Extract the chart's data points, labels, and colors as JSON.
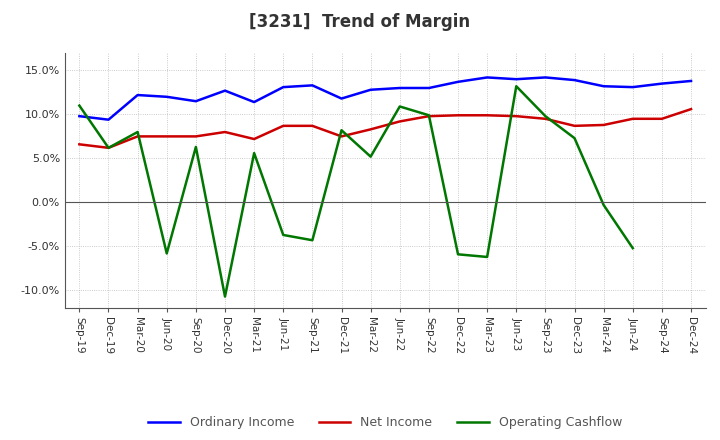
{
  "title": "[3231]  Trend of Margin",
  "x_labels": [
    "Sep-19",
    "Dec-19",
    "Mar-20",
    "Jun-20",
    "Sep-20",
    "Dec-20",
    "Mar-21",
    "Jun-21",
    "Sep-21",
    "Dec-21",
    "Mar-22",
    "Jun-22",
    "Sep-22",
    "Dec-22",
    "Mar-23",
    "Jun-23",
    "Sep-23",
    "Dec-23",
    "Mar-24",
    "Jun-24",
    "Sep-24",
    "Dec-24"
  ],
  "ordinary_income": [
    9.8,
    9.4,
    12.2,
    12.0,
    11.5,
    12.7,
    11.4,
    13.1,
    13.3,
    11.8,
    12.8,
    13.0,
    13.0,
    13.7,
    14.2,
    14.0,
    14.2,
    13.9,
    13.2,
    13.1,
    13.5,
    13.8
  ],
  "net_income": [
    6.6,
    6.2,
    7.5,
    7.5,
    7.5,
    8.0,
    7.2,
    8.7,
    8.7,
    7.5,
    8.3,
    9.2,
    9.8,
    9.9,
    9.9,
    9.8,
    9.5,
    8.7,
    8.8,
    9.5,
    9.5,
    10.6
  ],
  "operating_cashflow": [
    11.0,
    6.2,
    8.0,
    -5.8,
    6.3,
    -10.7,
    5.6,
    -3.7,
    -4.3,
    8.2,
    5.2,
    10.9,
    9.9,
    -5.9,
    -6.2,
    13.2,
    9.8,
    7.3,
    -0.3,
    -5.2,
    null,
    null
  ],
  "ylim": [
    -12.0,
    17.0
  ],
  "yticks": [
    -10.0,
    -5.0,
    0.0,
    5.0,
    10.0,
    15.0
  ],
  "color_ordinary": "#0000FF",
  "color_net": "#CC0000",
  "color_cashflow": "#007700",
  "background_color": "#FFFFFF",
  "grid_color": "#BBBBBB",
  "title_color": "#333333",
  "legend_labels": [
    "Ordinary Income",
    "Net Income",
    "Operating Cashflow"
  ]
}
